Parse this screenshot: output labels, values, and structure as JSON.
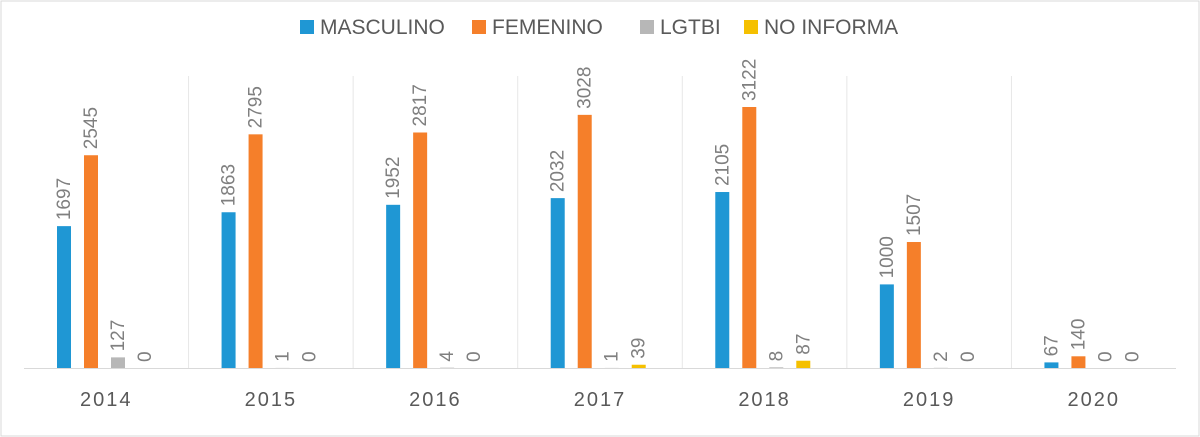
{
  "chart_data": {
    "type": "bar",
    "title": "",
    "xlabel": "",
    "ylabel": "",
    "categories": [
      "2014",
      "2015",
      "2016",
      "2017",
      "2018",
      "2019",
      "2020"
    ],
    "series": [
      {
        "name": "MASCULINO",
        "color": "#1f97d4",
        "values": [
          1697,
          1863,
          1952,
          2032,
          2105,
          1000,
          67
        ]
      },
      {
        "name": "FEMENINO",
        "color": "#f57f2a",
        "values": [
          2545,
          2795,
          2817,
          3028,
          3122,
          1507,
          140
        ]
      },
      {
        "name": "LGTBI",
        "color": "#b7b7b7",
        "values": [
          127,
          1,
          4,
          1,
          8,
          2,
          0
        ]
      },
      {
        "name": "NO INFORMA",
        "color": "#f5c000",
        "values": [
          0,
          0,
          0,
          39,
          87,
          0,
          0
        ]
      }
    ],
    "ylim": [
      0,
      3122
    ],
    "grid": false,
    "legend_position": "top",
    "data_labels": true
  }
}
